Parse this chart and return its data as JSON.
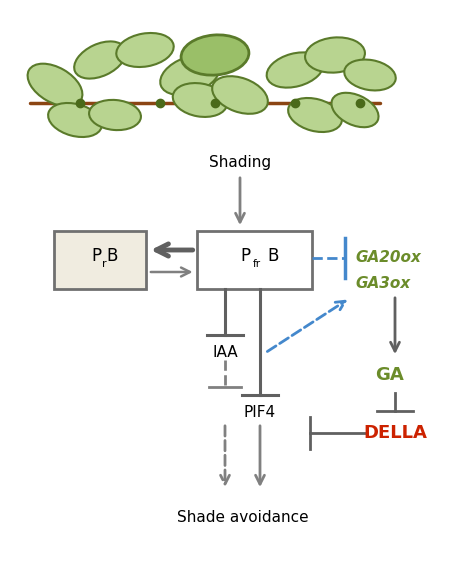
{
  "bg_color": "#ffffff",
  "gray": "#808080",
  "dark_gray": "#606060",
  "blue": "#4488cc",
  "green": "#6b8c2a",
  "red": "#cc2200",
  "box_fill_PrB": "#f0ece0",
  "box_fill_PfrB": "#ffffff",
  "box_border": "#707070",
  "shading_label": "Shading",
  "IAA_label": "IAA",
  "PIF4_label": "PIF4",
  "GA20ox_label": "GA20ox",
  "GA3ox_label": "GA3ox",
  "GA_label": "GA",
  "DELLA_label": "DELLA",
  "shade_avoidance_label": "Shade avoidance",
  "fig_width": 4.74,
  "fig_height": 5.73
}
